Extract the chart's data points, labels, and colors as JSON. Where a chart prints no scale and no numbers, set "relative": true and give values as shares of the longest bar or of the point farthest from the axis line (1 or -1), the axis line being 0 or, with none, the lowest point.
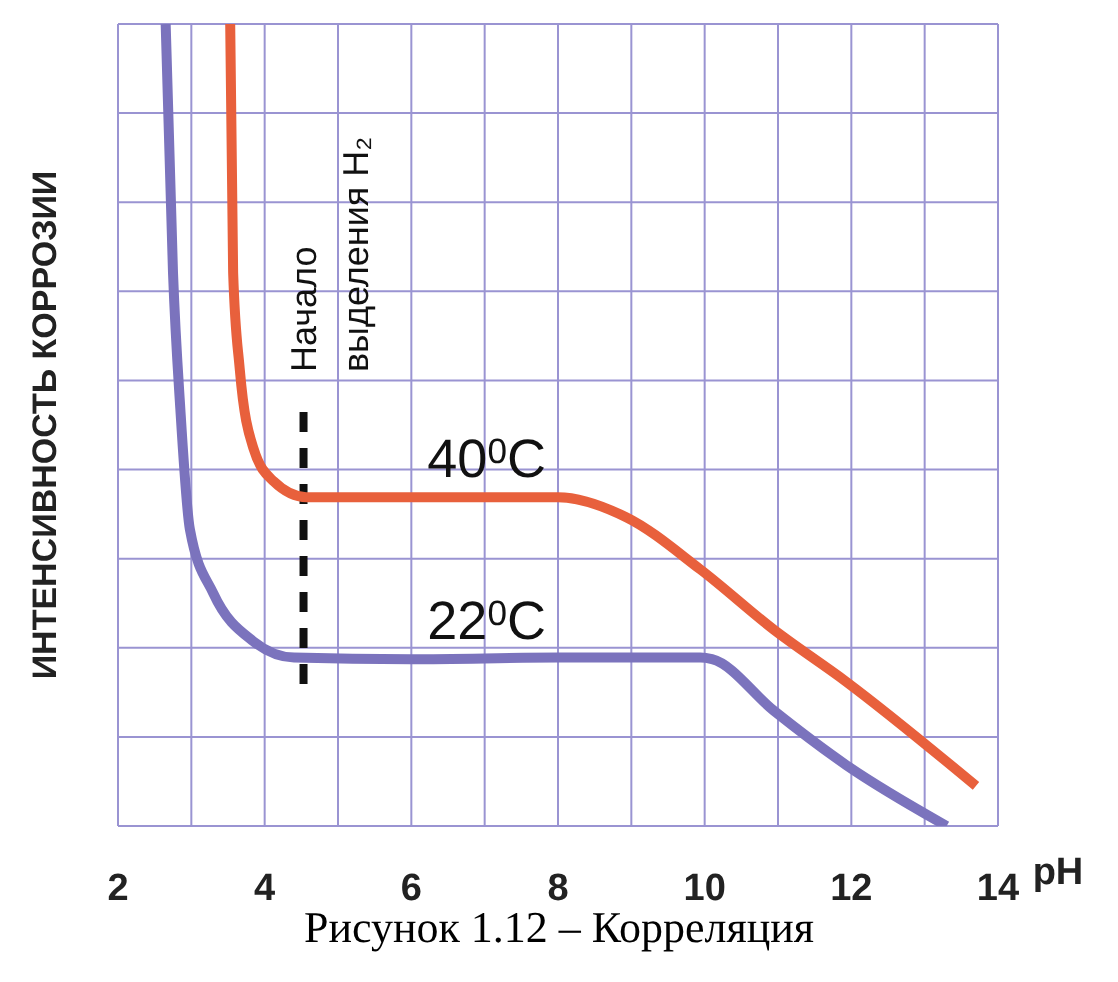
{
  "chart_data": {
    "type": "line",
    "relative": true,
    "xlabel": "pH",
    "ylabel": "ИНТЕНСИВНОСТЬ КОРРОЗИИ",
    "annotations": [
      "Рисунок 1.12 – Корреляция"
    ],
    "xlim": [
      2,
      14
    ],
    "xticks": [
      2,
      {
        "value": 3,
        "label": null
      },
      4,
      {
        "value": 5,
        "label": null
      },
      6,
      {
        "value": 7,
        "label": null
      },
      8,
      {
        "value": 9,
        "label": null
      },
      10,
      {
        "value": 11,
        "label": null
      },
      12,
      {
        "value": 13,
        "label": null
      },
      14
    ],
    "grid": true,
    "line_style": "solid",
    "marker": "none",
    "ref_lines": [
      {
        "axis": "x",
        "value": 4.53,
        "label": "Начало выделения H₂",
        "color": "#111111",
        "line_style": "dashed"
      }
    ],
    "series": [
      {
        "name": "40$^{0}$C",
        "color": "#e8603c",
        "x": [
          3.53,
          3.57,
          3.66,
          3.85,
          4.12,
          4.57,
          6,
          8,
          8.93,
          9.94,
          10.94,
          11.93,
          13.7
        ],
        "values": [
          1,
          0.69,
          0.57,
          0.47,
          0.43,
          0.41,
          0.41,
          0.41,
          0.385,
          0.32,
          0.245,
          0.18,
          0.05
        ]
      },
      {
        "name": "22$^{0}$C",
        "color": "#7b73bd",
        "x": [
          2.65,
          2.75,
          2.85,
          2.98,
          3.3,
          3.85,
          4.4,
          6,
          8,
          9.94,
          10.1,
          10.94,
          11.93,
          13.3
        ],
        "values": [
          1,
          0.69,
          0.52,
          0.37,
          0.29,
          0.23,
          0.21,
          0.208,
          0.21,
          0.21,
          0.208,
          0.144,
          0.076,
          0
        ]
      }
    ]
  }
}
